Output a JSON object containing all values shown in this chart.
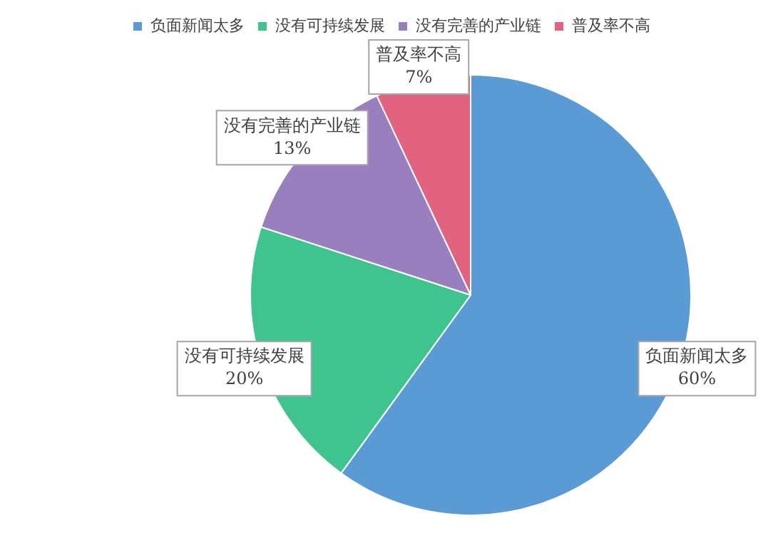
{
  "chart_data": {
    "type": "pie",
    "categories": [
      "负面新闻太多",
      "没有可持续发展",
      "没有完善的产业链",
      "普及率不高"
    ],
    "values": [
      60,
      20,
      13,
      7
    ],
    "value_labels": [
      "60%",
      "20%",
      "13%",
      "7%"
    ],
    "colors": [
      "#5b9bd5",
      "#3fc48f",
      "#9a7fbf",
      "#e2637f"
    ],
    "legend": "top"
  }
}
